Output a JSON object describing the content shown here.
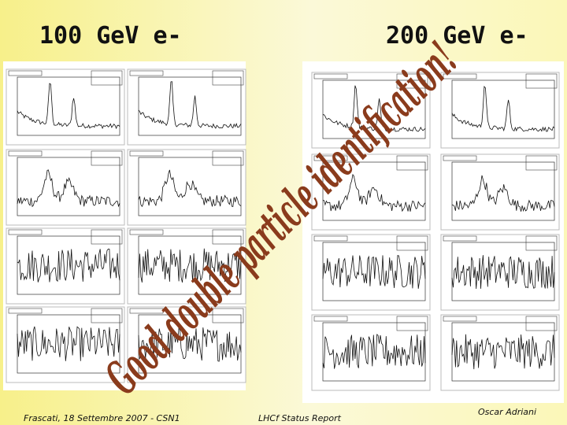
{
  "header": {
    "left_title": "100 GeV e-",
    "right_title": "200 GeV e-"
  },
  "overlay": {
    "text": "Good double particle identification!"
  },
  "footer": {
    "left": "Frascati, 18 Settembre 2007 - CSN1",
    "center": "LHCf Status Report",
    "right": "Oscar Adriani"
  }
}
